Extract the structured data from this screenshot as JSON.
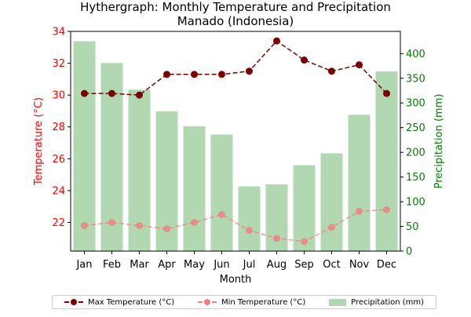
{
  "chart_data": {
    "type": "bar+line",
    "title": "Hythergraph: Monthly Temperature and Precipitation\nManado (Indonesia)",
    "xlabel": "Month",
    "ylabel_left": "Temperature (°C)",
    "ylabel_right": "Precipitation (mm)",
    "categories": [
      "Jan",
      "Feb",
      "Mar",
      "Apr",
      "May",
      "Jun",
      "Jul",
      "Aug",
      "Sep",
      "Oct",
      "Nov",
      "Dec"
    ],
    "ylim_left": [
      20.2,
      34
    ],
    "yticks_left": [
      22,
      24,
      26,
      28,
      30,
      32,
      34
    ],
    "ylim_right": [
      0,
      445
    ],
    "yticks_right": [
      0,
      50,
      100,
      150,
      200,
      250,
      300,
      350,
      400
    ],
    "series": [
      {
        "name": "Max Temperature (°C)",
        "type": "line",
        "axis": "left",
        "values": [
          30.1,
          30.1,
          30.0,
          31.3,
          31.3,
          31.3,
          31.5,
          33.4,
          32.2,
          31.5,
          31.9,
          30.1
        ]
      },
      {
        "name": "Min Temperature (°C)",
        "type": "line",
        "axis": "left",
        "values": [
          21.8,
          22.0,
          21.8,
          21.6,
          22.0,
          22.5,
          21.5,
          21.0,
          20.8,
          21.7,
          22.7,
          22.8
        ]
      },
      {
        "name": "Precipitation (mm)",
        "type": "bar",
        "axis": "right",
        "values": [
          425,
          381,
          327,
          283,
          253,
          236,
          131,
          135,
          174,
          198,
          276,
          364
        ]
      }
    ],
    "colors": {
      "max_temp": "#7b0000",
      "min_temp": "#f08080",
      "precip": "#b2d8b2",
      "left_axis": "#ff0000",
      "right_axis": "#008000"
    },
    "grid": false,
    "legend_position": "bottom-center"
  }
}
